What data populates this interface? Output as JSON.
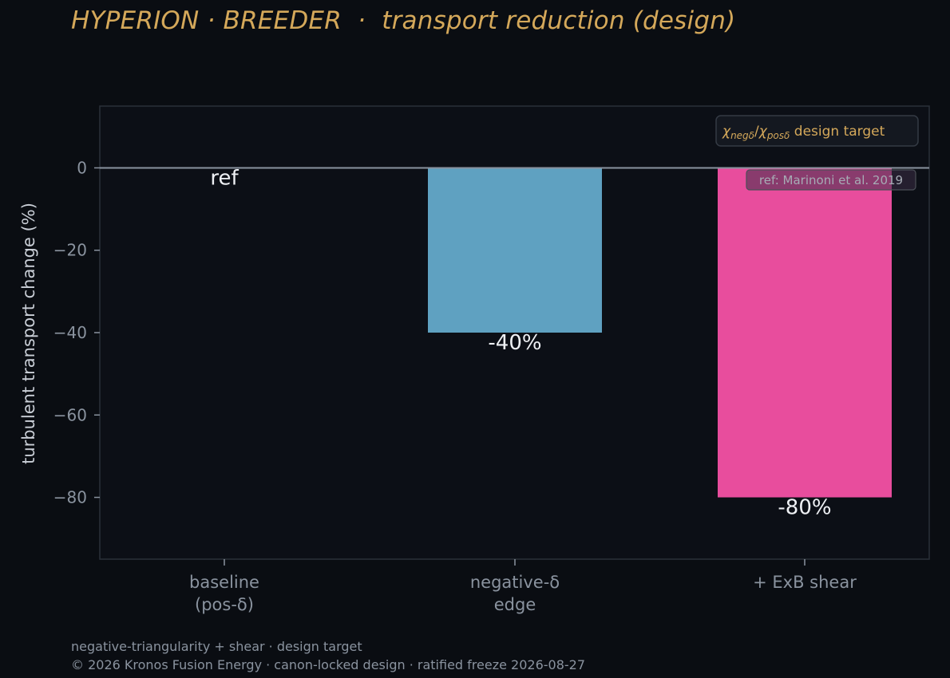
{
  "title": "HYPERION · BREEDER  ·  transport reduction (design)",
  "footer": {
    "line1": "negative-triangularity + shear · design target",
    "line2": "© 2026 Kronos Fusion Energy · canon-locked design · ratified freeze 2026-08-27"
  },
  "legend": {
    "chi_neg": "χ",
    "chi_neg_sub": "negδ",
    "slash": "/",
    "chi_pos": "χ",
    "chi_pos_sub": "posδ",
    "suffix": " design target"
  },
  "reference_note": "ref: Marinoni et al. 2019",
  "colors": {
    "background": "#0a0d12",
    "plot_bg": "#0c0f16",
    "title": "#d4a85a",
    "bar_negative": "#5fa1c1",
    "bar_shear": "#e84d9d",
    "axis_text": "#8a939f",
    "zero_line": "#8a939f"
  },
  "chart_data": {
    "type": "bar",
    "categories": [
      "baseline\n(pos-δ)",
      "negative-δ\nedge",
      "+ ExB shear"
    ],
    "values": [
      0,
      -40,
      -80
    ],
    "bar_labels": [
      "ref",
      "-40%",
      "-80%"
    ],
    "bar_colors": [
      "#0c0f16",
      "#5fa1c1",
      "#e84d9d"
    ],
    "ylabel": "turbulent transport change (%)",
    "xlabel": "",
    "ylim": [
      -95,
      15
    ],
    "yticks": [
      0,
      -20,
      -40,
      -60,
      -80
    ],
    "ytick_labels": [
      "0",
      "−20",
      "−40",
      "−60",
      "−80"
    ],
    "grid": false,
    "legend_position": "top-right"
  }
}
